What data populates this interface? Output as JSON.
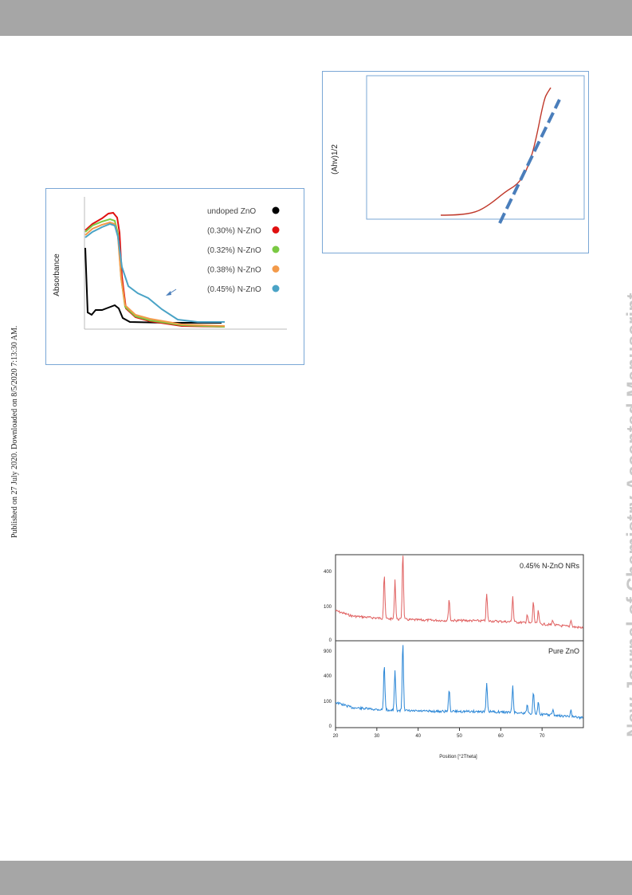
{
  "header": {
    "bar_color": "#a6a6a6"
  },
  "side_note": "Published on 27 July 2020. Downloaded on 8/5/2020 7:13:30 AM.",
  "watermark": "New Journal of Chemistry Accepted Manuscript",
  "chart_data": [
    {
      "type": "line",
      "title": "",
      "xlabel": "",
      "ylabel": "Absorbance",
      "legend_position": "right",
      "series": [
        {
          "name": "undoped ZnO",
          "color": "#000000"
        },
        {
          "name": "(0.30%) N-ZnO",
          "color": "#e01010"
        },
        {
          "name": "(0.32%) N-ZnO",
          "color": "#7ac943"
        },
        {
          "name": "(0.38%) N-ZnO",
          "color": "#f39a4a"
        },
        {
          "name": "(0.45%) N-ZnO",
          "color": "#4aa3c6"
        }
      ],
      "legend_labels": [
        "undoped ZnO",
        "(0.30%) N-ZnO",
        "(0.32%) N-ZnO",
        "(0.38%) N-ZnO",
        "(0.45%) N-ZnO"
      ]
    },
    {
      "type": "line",
      "title": "",
      "xlabel": "",
      "ylabel": "(Ahv)1/2",
      "series": [
        {
          "name": "",
          "color": "#c0392b",
          "style": "solid"
        },
        {
          "name": "",
          "color": "#4a7ebb",
          "style": "dashed"
        }
      ]
    },
    {
      "type": "line",
      "title": "",
      "xlabel": "Position [°2Theta]",
      "xlim": [
        20,
        80
      ],
      "x_ticks": [
        20,
        30,
        40,
        50,
        60,
        70
      ],
      "panels": [
        {
          "label": "0.45% N-ZnO NRs",
          "color": "#e06060",
          "y_ticks": [
            "400",
            "100",
            "0"
          ],
          "peaks": [
            31.8,
            34.4,
            36.3,
            47.5,
            56.6,
            62.9,
            66.4,
            67.9,
            69.1,
            72.6,
            77.0
          ]
        },
        {
          "label": "Pure ZnO",
          "color": "#2a86d6",
          "y_ticks": [
            "900",
            "400",
            "100",
            "0"
          ],
          "peaks": [
            31.8,
            34.4,
            36.3,
            47.5,
            56.6,
            62.9,
            66.4,
            67.9,
            69.1,
            72.6,
            77.0
          ]
        }
      ]
    }
  ]
}
